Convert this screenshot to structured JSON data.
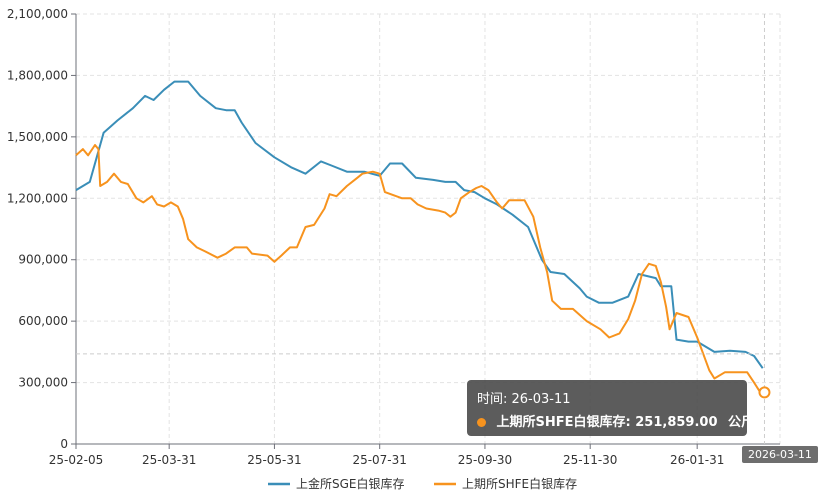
{
  "chart_data": {
    "type": "line",
    "x_axis_type": "date",
    "x_tick_labels": [
      "25-02-05",
      "25-03-31",
      "25-05-31",
      "25-07-31",
      "25-09-30",
      "25-11-30",
      "26-01-31"
    ],
    "y_tick_labels": [
      "0",
      "300,000",
      "600,000",
      "900,000",
      "1,200,000",
      "1,500,000",
      "1,800,000",
      "2,100,000"
    ],
    "ylim": [
      0,
      2100000
    ],
    "xlim": [
      "2025-02-05",
      "2026-03-20"
    ],
    "grid": true,
    "legend_position": "bottom-center",
    "series": [
      {
        "name": "上金所SGE白银库存",
        "color": "#3a8eb8",
        "points": [
          [
            "2025-02-05",
            1240000
          ],
          [
            "2025-02-13",
            1280000
          ],
          [
            "2025-02-21",
            1520000
          ],
          [
            "2025-03-01",
            1580000
          ],
          [
            "2025-03-10",
            1640000
          ],
          [
            "2025-03-17",
            1700000
          ],
          [
            "2025-03-22",
            1680000
          ],
          [
            "2025-03-28",
            1730000
          ],
          [
            "2025-04-03",
            1770000
          ],
          [
            "2025-04-11",
            1770000
          ],
          [
            "2025-04-18",
            1700000
          ],
          [
            "2025-04-27",
            1640000
          ],
          [
            "2025-05-03",
            1630000
          ],
          [
            "2025-05-08",
            1630000
          ],
          [
            "2025-05-12",
            1570000
          ],
          [
            "2025-05-20",
            1470000
          ],
          [
            "2025-05-31",
            1400000
          ],
          [
            "2025-06-10",
            1350000
          ],
          [
            "2025-06-18",
            1320000
          ],
          [
            "2025-06-27",
            1380000
          ],
          [
            "2025-07-03",
            1360000
          ],
          [
            "2025-07-12",
            1330000
          ],
          [
            "2025-07-22",
            1330000
          ],
          [
            "2025-07-31",
            1310000
          ],
          [
            "2025-08-06",
            1370000
          ],
          [
            "2025-08-13",
            1370000
          ],
          [
            "2025-08-21",
            1300000
          ],
          [
            "2025-08-31",
            1290000
          ],
          [
            "2025-09-07",
            1280000
          ],
          [
            "2025-09-13",
            1280000
          ],
          [
            "2025-09-18",
            1240000
          ],
          [
            "2025-09-24",
            1230000
          ],
          [
            "2025-09-30",
            1200000
          ],
          [
            "2025-10-07",
            1170000
          ],
          [
            "2025-10-16",
            1120000
          ],
          [
            "2025-10-25",
            1060000
          ],
          [
            "2025-11-02",
            900000
          ],
          [
            "2025-11-07",
            840000
          ],
          [
            "2025-11-15",
            830000
          ],
          [
            "2025-11-24",
            760000
          ],
          [
            "2025-11-28",
            720000
          ],
          [
            "2025-12-05",
            690000
          ],
          [
            "2025-12-13",
            690000
          ],
          [
            "2025-12-22",
            720000
          ],
          [
            "2025-12-28",
            830000
          ],
          [
            "2026-01-07",
            810000
          ],
          [
            "2026-01-10",
            770000
          ],
          [
            "2026-01-16",
            770000
          ],
          [
            "2026-01-19",
            510000
          ],
          [
            "2026-01-26",
            500000
          ],
          [
            "2026-01-31",
            500000
          ],
          [
            "2026-02-10",
            450000
          ],
          [
            "2026-02-19",
            455000
          ],
          [
            "2026-02-28",
            450000
          ],
          [
            "2026-03-05",
            430000
          ],
          [
            "2026-03-10",
            370000
          ]
        ]
      },
      {
        "name": "上期所SHFE白银库存",
        "color": "#f7931e",
        "points": [
          [
            "2025-02-05",
            1410000
          ],
          [
            "2025-02-09",
            1440000
          ],
          [
            "2025-02-12",
            1410000
          ],
          [
            "2025-02-16",
            1460000
          ],
          [
            "2025-02-18",
            1440000
          ],
          [
            "2025-02-19",
            1260000
          ],
          [
            "2025-02-23",
            1280000
          ],
          [
            "2025-02-27",
            1320000
          ],
          [
            "2025-03-03",
            1280000
          ],
          [
            "2025-03-07",
            1270000
          ],
          [
            "2025-03-12",
            1200000
          ],
          [
            "2025-03-16",
            1180000
          ],
          [
            "2025-03-21",
            1210000
          ],
          [
            "2025-03-24",
            1170000
          ],
          [
            "2025-03-28",
            1160000
          ],
          [
            "2025-04-01",
            1180000
          ],
          [
            "2025-04-05",
            1160000
          ],
          [
            "2025-04-08",
            1100000
          ],
          [
            "2025-04-11",
            1000000
          ],
          [
            "2025-04-16",
            960000
          ],
          [
            "2025-04-21",
            940000
          ],
          [
            "2025-04-28",
            910000
          ],
          [
            "2025-05-03",
            930000
          ],
          [
            "2025-05-08",
            960000
          ],
          [
            "2025-05-15",
            960000
          ],
          [
            "2025-05-18",
            930000
          ],
          [
            "2025-05-27",
            920000
          ],
          [
            "2025-05-31",
            890000
          ],
          [
            "2025-06-04",
            920000
          ],
          [
            "2025-06-09",
            960000
          ],
          [
            "2025-06-13",
            960000
          ],
          [
            "2025-06-18",
            1060000
          ],
          [
            "2025-06-23",
            1070000
          ],
          [
            "2025-06-29",
            1150000
          ],
          [
            "2025-07-02",
            1220000
          ],
          [
            "2025-07-06",
            1210000
          ],
          [
            "2025-07-12",
            1260000
          ],
          [
            "2025-07-18",
            1300000
          ],
          [
            "2025-07-21",
            1320000
          ],
          [
            "2025-07-27",
            1330000
          ],
          [
            "2025-07-31",
            1320000
          ],
          [
            "2025-08-03",
            1230000
          ],
          [
            "2025-08-13",
            1200000
          ],
          [
            "2025-08-18",
            1200000
          ],
          [
            "2025-08-22",
            1170000
          ],
          [
            "2025-08-27",
            1150000
          ],
          [
            "2025-09-03",
            1140000
          ],
          [
            "2025-09-07",
            1130000
          ],
          [
            "2025-09-10",
            1110000
          ],
          [
            "2025-09-13",
            1130000
          ],
          [
            "2025-09-16",
            1200000
          ],
          [
            "2025-09-21",
            1230000
          ],
          [
            "2025-09-25",
            1250000
          ],
          [
            "2025-09-28",
            1260000
          ],
          [
            "2025-10-02",
            1240000
          ],
          [
            "2025-10-07",
            1180000
          ],
          [
            "2025-10-10",
            1150000
          ],
          [
            "2025-10-14",
            1190000
          ],
          [
            "2025-10-23",
            1190000
          ],
          [
            "2025-10-28",
            1110000
          ],
          [
            "2025-11-01",
            960000
          ],
          [
            "2025-11-05",
            840000
          ],
          [
            "2025-11-08",
            700000
          ],
          [
            "2025-11-13",
            660000
          ],
          [
            "2025-11-20",
            660000
          ],
          [
            "2025-11-28",
            600000
          ],
          [
            "2025-12-06",
            560000
          ],
          [
            "2025-12-11",
            520000
          ],
          [
            "2025-12-17",
            540000
          ],
          [
            "2025-12-22",
            610000
          ],
          [
            "2025-12-26",
            700000
          ],
          [
            "2025-12-30",
            830000
          ],
          [
            "2026-01-03",
            880000
          ],
          [
            "2026-01-07",
            870000
          ],
          [
            "2026-01-10",
            790000
          ],
          [
            "2026-01-13",
            670000
          ],
          [
            "2026-01-15",
            560000
          ],
          [
            "2026-01-19",
            640000
          ],
          [
            "2026-01-26",
            620000
          ],
          [
            "2026-01-31",
            520000
          ],
          [
            "2026-02-07",
            360000
          ],
          [
            "2026-02-10",
            320000
          ],
          [
            "2026-02-16",
            350000
          ],
          [
            "2026-02-22",
            350000
          ],
          [
            "2026-03-01",
            350000
          ],
          [
            "2026-03-05",
            300000
          ],
          [
            "2026-03-08",
            260000
          ],
          [
            "2026-03-11",
            251859
          ]
        ]
      }
    ],
    "axis_pointer": {
      "y_value": 440000,
      "x_label": "2026-03-11"
    },
    "highlight_point": {
      "series": 1,
      "x": "2026-03-11",
      "y": 251859
    }
  },
  "tooltip": {
    "time_label": "时间: 26-03-11",
    "series_label": "上期所SHFE白银库存: 251,859.00",
    "unit": "公斤",
    "dot_color": "#f7931e"
  }
}
